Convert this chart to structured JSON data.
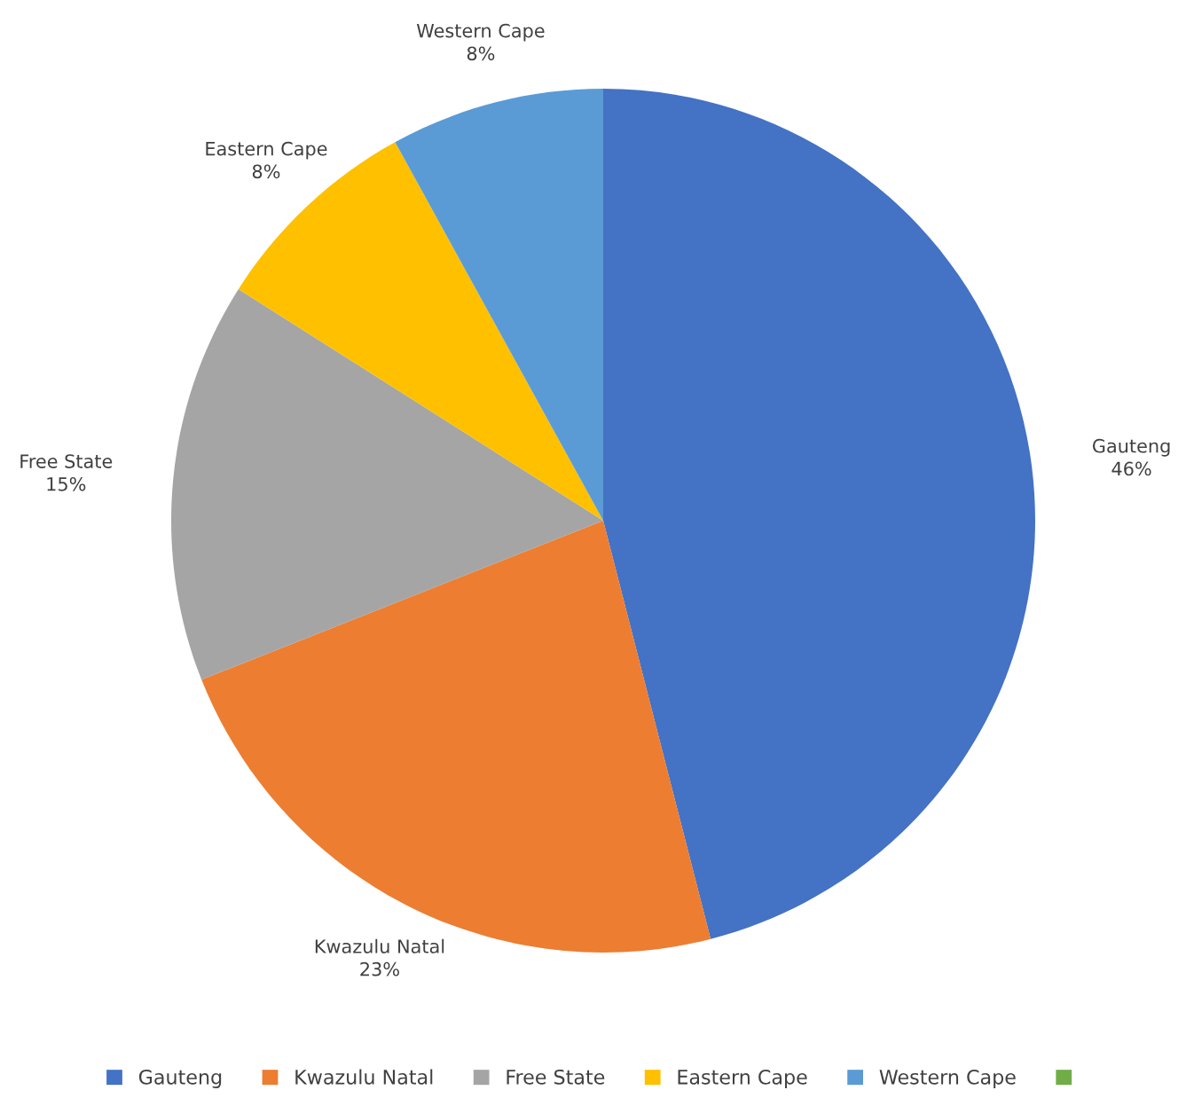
{
  "chart_data": {
    "type": "pie",
    "categories": [
      "Gauteng",
      "Kwazulu Natal",
      "Free State",
      "Eastern Cape",
      "Western Cape",
      null
    ],
    "values": [
      46,
      23,
      15,
      8,
      8,
      0
    ],
    "value_labels": [
      "46%",
      "23%",
      "15%",
      "8%",
      "8%",
      null
    ],
    "colors": [
      "#4472c4",
      "#ed7d31",
      "#a5a5a5",
      "#ffc000",
      "#5b9bd5",
      "#70ad47"
    ],
    "legend": "bottom"
  }
}
